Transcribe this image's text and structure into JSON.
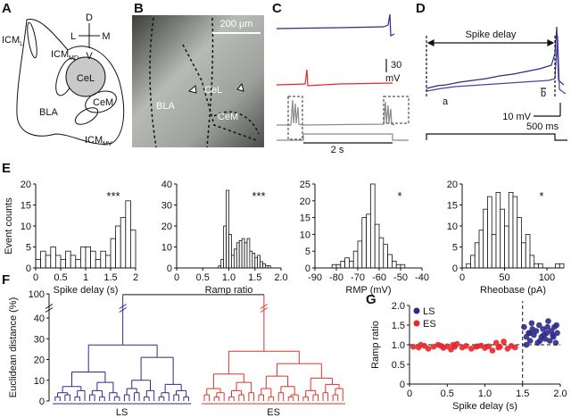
{
  "figure": {
    "panel_labels": [
      "A",
      "B",
      "C",
      "D",
      "E",
      "F",
      "G"
    ],
    "a": {
      "icm_l": {
        "base": "ICM",
        "sub": "L"
      },
      "icm_md": {
        "base": "ICM",
        "sub": "MD"
      },
      "cel": "CeL",
      "bla": "BLA",
      "cem": "CeM",
      "icm_mv": {
        "base": "ICM",
        "sub": "MV"
      },
      "compass": [
        "D",
        "V",
        "L",
        "M"
      ]
    },
    "b": {
      "scale": "200 µm",
      "bla": "BLA",
      "cel": "CeL",
      "cem": "CeM"
    },
    "c": {
      "scale_v": [
        "30",
        "mV"
      ],
      "scale_t": "2 s"
    },
    "d": {
      "delay": "Spike delay",
      "a": "a",
      "b": "b",
      "scale_v": "10 mV",
      "scale_t": "500 ms"
    }
  },
  "chart_data": [
    {
      "type": "histogram",
      "ylabel": "Event counts",
      "xlabel": "Spike delay (s)",
      "annotation": "***",
      "bins": [
        0,
        0.1,
        0.2,
        0.3,
        0.4,
        0.5,
        0.6,
        0.7,
        0.8,
        0.9,
        1.0,
        1.1,
        1.2,
        1.3,
        1.4,
        1.5,
        1.6,
        1.7,
        1.8,
        1.9,
        2.0
      ],
      "values": [
        2,
        4,
        3,
        5,
        3,
        2,
        4,
        3,
        2,
        5,
        5,
        4,
        2,
        4,
        3,
        7,
        10,
        12,
        16,
        9
      ],
      "xlim": [
        0,
        2
      ],
      "ylim": [
        0,
        20
      ],
      "xticks": [
        0,
        0.5,
        1,
        1.5,
        2
      ],
      "yticks": [
        0,
        5,
        10,
        15,
        20
      ]
    },
    {
      "type": "histogram",
      "xlabel": "Ramp ratio",
      "annotation": "***",
      "bins": [
        0.8,
        0.85,
        0.9,
        0.95,
        1.0,
        1.05,
        1.1,
        1.15,
        1.2,
        1.25,
        1.3,
        1.35,
        1.4,
        1.45,
        1.5,
        1.55,
        1.6,
        1.65,
        1.7,
        1.75,
        1.8
      ],
      "values": [
        1,
        4,
        20,
        37,
        16,
        6,
        9,
        12,
        13,
        14,
        12,
        14,
        8,
        7,
        5,
        6,
        3,
        2,
        1,
        1
      ],
      "xlim": [
        0,
        2
      ],
      "ylim": [
        0,
        40
      ],
      "xticks": [
        0,
        0.5,
        {
          "value": 1,
          "label": "1.0"
        },
        1.5,
        {
          "value": 2,
          "label": "2.0"
        }
      ],
      "yticks": [
        0,
        10,
        20,
        30,
        40
      ]
    },
    {
      "type": "histogram",
      "xlabel": "RMP (mV)",
      "annotation": "*",
      "bins": [
        -82,
        -80,
        -78,
        -76,
        -74,
        -72,
        -70,
        -68,
        -66,
        -64,
        -62,
        -60,
        -58,
        -56,
        -54,
        -52,
        -50,
        -48
      ],
      "values": [
        1,
        1,
        2,
        3,
        2,
        5,
        8,
        15,
        16,
        25,
        13,
        9,
        7,
        4,
        2,
        1,
        1
      ],
      "xlim": [
        -90,
        -40
      ],
      "ylim": [
        0,
        25
      ],
      "xticks": [
        -90,
        -80,
        -70,
        -60,
        -50,
        -40
      ],
      "yticks": [
        0,
        5,
        10,
        15,
        20,
        25
      ]
    },
    {
      "type": "histogram",
      "xlabel": "Rheobase (pA)",
      "annotation": "*",
      "bins": [
        5,
        10,
        15,
        20,
        25,
        30,
        35,
        40,
        45,
        50,
        55,
        60,
        65,
        70,
        75,
        80,
        85,
        90,
        95,
        100,
        105,
        110,
        115,
        120
      ],
      "values": [
        1,
        3,
        6,
        9,
        14,
        17,
        8,
        18,
        14,
        10,
        18,
        17,
        12,
        6,
        8,
        3,
        1,
        1,
        0,
        0,
        0,
        1,
        1
      ],
      "xlim": [
        0,
        120
      ],
      "ylim": [
        0,
        20
      ],
      "xticks": [
        0,
        50,
        100
      ],
      "yticks": [
        0,
        5,
        10,
        15,
        20
      ]
    },
    {
      "type": "dendrogram",
      "ylabel": "Euclidean distance (%)",
      "ylim": [
        0,
        100
      ],
      "yticks": [
        0,
        10,
        20,
        30,
        40,
        100
      ],
      "root": 98,
      "clusters": [
        {
          "name": "LS",
          "color": "#2e2a8a",
          "tree": [
            27,
            [
              14,
              [
                7,
                [
                  4,
                  [
                    2,
                    0,
                    0
                  ],
                  [
                    3,
                    0,
                    0
                  ]
                ],
                [
                  5,
                  [
                    2,
                    0,
                    0
                  ],
                  0
                ]
              ],
              [
                9,
                [
                  5,
                  [
                    3,
                    0,
                    0
                  ],
                  [
                    2,
                    0,
                    0
                  ]
                ],
                [
                  4,
                  0,
                  [
                    2,
                    0,
                    0
                  ]
                ]
              ]
            ],
            [
              21,
              [
                10,
                [
                  6,
                  [
                    3,
                    0,
                    0
                  ],
                  [
                    4,
                    0,
                    0
                  ]
                ],
                [
                  5,
                  [
                    2,
                    0,
                    0
                  ],
                  0
                ]
              ],
              [
                8,
                [
                  4,
                  [
                    2,
                    0,
                    0
                  ],
                  0
                ],
                [
                  5,
                  [
                    3,
                    0,
                    0
                  ],
                  [
                    2,
                    0,
                    0
                  ]
                ]
              ]
            ]
          ]
        },
        {
          "name": "ES",
          "color": "#d8362b",
          "tree": [
            24,
            [
              13,
              [
                6,
                [
                  3,
                  0,
                  0
                ],
                [
                  4,
                  [
                    2,
                    0,
                    0
                  ],
                  0
                ]
              ],
              [
                9,
                [
                  5,
                  [
                    2,
                    0,
                    0
                  ],
                  [
                    3,
                    0,
                    0
                  ]
                ],
                [
                  4,
                  0,
                  0
                ]
              ]
            ],
            [
              18,
              [
                12,
                [
                  6,
                  [
                    3,
                    0,
                    0
                  ],
                  [
                    2,
                    0,
                    0
                  ]
                ],
                [
                  7,
                  [
                    4,
                    0,
                    0
                  ],
                  [
                    3,
                    [
                      2,
                      0,
                      0
                    ],
                    0
                  ]
                ]
              ],
              [
                11,
                [
                  5,
                  [
                    2,
                    0,
                    0
                  ],
                  [
                    3,
                    0,
                    0
                  ]
                ],
                [
                  8,
                  [
                    4,
                    0,
                    0
                  ],
                  [
                    6,
                    [
                      3,
                      0,
                      0
                    ],
                    0
                  ]
                ]
              ]
            ]
          ]
        }
      ]
    },
    {
      "type": "scatter",
      "xlabel": "Spike delay (s)",
      "ylabel": "Ramp ratio",
      "legend": "upper left",
      "xlim": [
        0,
        2
      ],
      "ylim": [
        0,
        2
      ],
      "xticks": [
        0,
        0.5,
        {
          "value": 1,
          "label": "1.0"
        },
        1.5,
        {
          "value": 2,
          "label": "2.0"
        }
      ],
      "yticks": [
        0,
        0.5,
        {
          "value": 1,
          "label": "1.0"
        },
        1.5,
        {
          "value": 2,
          "label": "2.0"
        }
      ],
      "ref_lines": {
        "x": 1.5,
        "y": 1
      },
      "series": [
        {
          "name": "LS",
          "color": "#2e2a8a",
          "x": [
            1.52,
            1.55,
            1.58,
            1.6,
            1.62,
            1.65,
            1.68,
            1.7,
            1.72,
            1.75,
            1.77,
            1.8,
            1.82,
            1.84,
            1.86,
            1.88,
            1.9,
            1.92,
            1.94,
            1.96,
            1.55,
            1.63,
            1.73,
            1.83,
            1.91,
            1.6,
            1.78,
            1.95
          ],
          "values": [
            1.45,
            1.2,
            1.3,
            1.1,
            1.55,
            1.25,
            1.35,
            1.05,
            1.5,
            1.2,
            1.4,
            1.15,
            1.3,
            1.6,
            1.1,
            1.35,
            1.25,
            1.45,
            1.05,
            1.3,
            1.0,
            1.4,
            1.1,
            1.45,
            1.2,
            1.3,
            1.25,
            1.5
          ]
        },
        {
          "name": "ES",
          "color": "#e8262b",
          "x": [
            0.05,
            0.12,
            0.2,
            0.25,
            0.32,
            0.38,
            0.45,
            0.5,
            0.55,
            0.6,
            0.63,
            0.7,
            0.75,
            0.82,
            0.88,
            0.95,
            1.0,
            1.05,
            1.1,
            1.15,
            1.2,
            1.25,
            1.3,
            1.35,
            1.4,
            0.15,
            0.42,
            0.58,
            0.9,
            1.18
          ],
          "values": [
            0.95,
            0.93,
            0.97,
            0.9,
            0.95,
            1.0,
            0.92,
            0.96,
            0.88,
            0.95,
            1.02,
            0.93,
            0.97,
            0.9,
            0.95,
            0.98,
            0.92,
            0.96,
            0.85,
            1.05,
            0.95,
            1.08,
            0.9,
            0.97,
            0.93,
            1.0,
            0.97,
            1.0,
            0.96,
            0.93
          ]
        }
      ]
    }
  ]
}
